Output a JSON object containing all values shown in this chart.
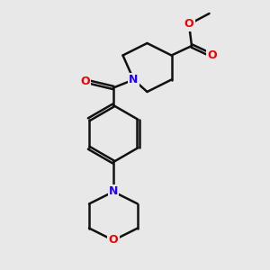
{
  "bg": "#e8e8e8",
  "bond_color": "#111111",
  "N_color": "#2200ff",
  "O_color": "#ee0000",
  "bw": 1.8,
  "dbo": 0.06,
  "fs": 9,
  "fig_w": 3.0,
  "fig_h": 3.0,
  "dpi": 100,
  "xlim": [
    0,
    10
  ],
  "ylim": [
    0,
    10
  ]
}
